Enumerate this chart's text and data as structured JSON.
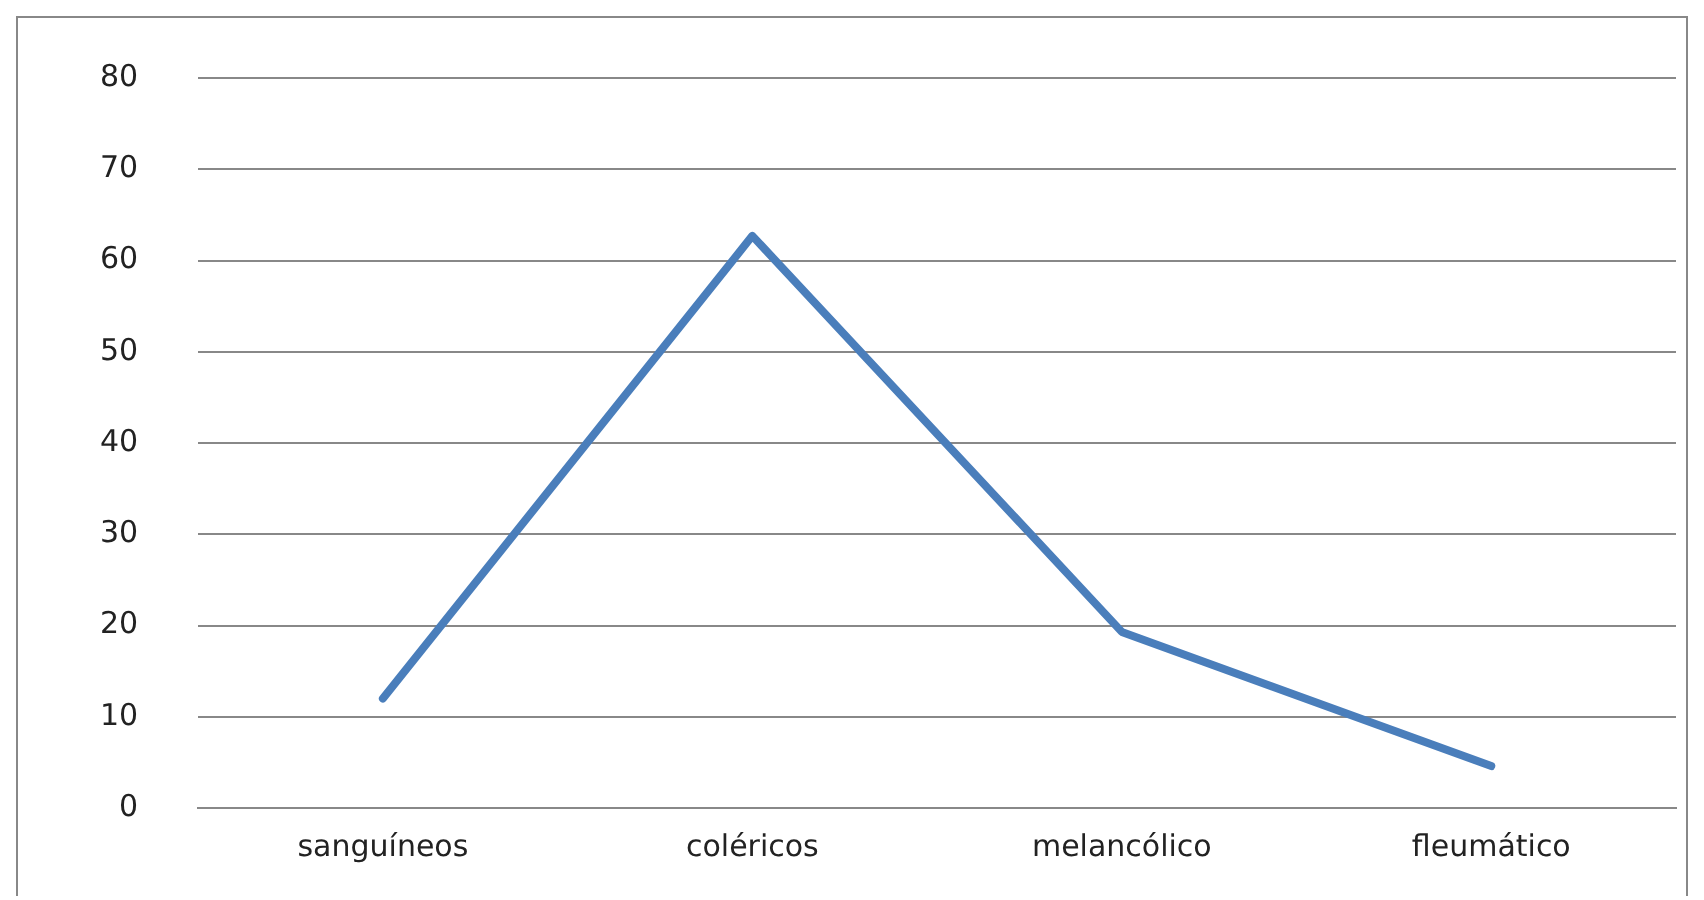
{
  "chart_data": {
    "type": "line",
    "categories": [
      "sanguíneos",
      "coléricos",
      "melancólico",
      "fleumático"
    ],
    "series": [
      {
        "color": "#4a7ebb",
        "values": [
          12,
          62.7,
          19.3,
          4.6
        ]
      }
    ],
    "ylim": [
      0,
      80
    ],
    "yticks": [
      0,
      10,
      20,
      30,
      40,
      50,
      60,
      70,
      80
    ],
    "grid": "y",
    "legend": false,
    "marker": "none",
    "line_style": "solid"
  }
}
